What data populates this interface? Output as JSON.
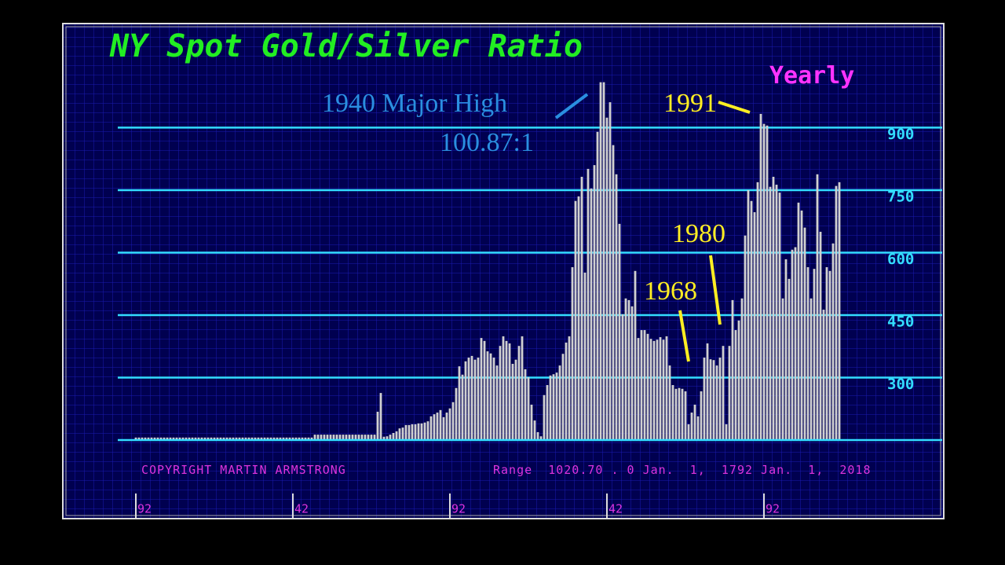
{
  "chart_data": {
    "type": "bar",
    "title": "NY Spot Gold/Silver Ratio",
    "subtitle": "Yearly",
    "annotations": [
      "1940 Major High",
      "100.87:1",
      "1991",
      "1980",
      "1968"
    ],
    "copyright": "COPYRIGHT MARTIN ARMSTRONG",
    "range_text": "Range  1020.70 . 0 Jan.  1,  1792 Jan.  1,  2018",
    "color": "#d0d0d0",
    "xlim": [
      1786.25,
      2048.75
    ],
    "ylim": [
      150,
      1140
    ],
    "yticks": [
      300,
      450,
      600,
      750,
      900
    ],
    "xticks": [
      {
        "value": 1792,
        "label": "92"
      },
      {
        "value": 1842,
        "label": "42"
      },
      {
        "value": 1892,
        "label": "92"
      },
      {
        "value": 1942,
        "label": "42"
      },
      {
        "value": 1992,
        "label": "92"
      }
    ],
    "grid": true,
    "x": [
      1792,
      1793,
      1794,
      1795,
      1796,
      1797,
      1798,
      1799,
      1800,
      1801,
      1802,
      1803,
      1804,
      1805,
      1806,
      1807,
      1808,
      1809,
      1810,
      1811,
      1812,
      1813,
      1814,
      1815,
      1816,
      1817,
      1818,
      1819,
      1820,
      1821,
      1822,
      1823,
      1824,
      1825,
      1826,
      1827,
      1828,
      1829,
      1830,
      1831,
      1832,
      1833,
      1834,
      1835,
      1836,
      1837,
      1838,
      1839,
      1840,
      1841,
      1842,
      1843,
      1844,
      1845,
      1846,
      1847,
      1848,
      1849,
      1850,
      1851,
      1852,
      1853,
      1854,
      1855,
      1856,
      1857,
      1858,
      1859,
      1860,
      1861,
      1862,
      1863,
      1864,
      1865,
      1866,
      1867,
      1868,
      1869,
      1870,
      1871,
      1872,
      1873,
      1874,
      1875,
      1876,
      1877,
      1878,
      1879,
      1880,
      1881,
      1882,
      1883,
      1884,
      1885,
      1886,
      1887,
      1888,
      1889,
      1890,
      1891,
      1892,
      1893,
      1894,
      1895,
      1896,
      1897,
      1898,
      1899,
      1900,
      1901,
      1902,
      1903,
      1904,
      1905,
      1906,
      1907,
      1908,
      1909,
      1910,
      1911,
      1912,
      1913,
      1914,
      1915,
      1916,
      1917,
      1918,
      1919,
      1920,
      1921,
      1922,
      1923,
      1924,
      1925,
      1926,
      1927,
      1928,
      1929,
      1930,
      1931,
      1932,
      1933,
      1934,
      1935,
      1936,
      1937,
      1938,
      1939,
      1940,
      1941,
      1942,
      1943,
      1944,
      1945,
      1946,
      1947,
      1948,
      1949,
      1950,
      1951,
      1952,
      1953,
      1954,
      1955,
      1956,
      1957,
      1958,
      1959,
      1960,
      1961,
      1962,
      1963,
      1964,
      1965,
      1966,
      1967,
      1968,
      1969,
      1970,
      1971,
      1972,
      1973,
      1974,
      1975,
      1976,
      1977,
      1978,
      1979,
      1980,
      1981,
      1982,
      1983,
      1984,
      1985,
      1986,
      1987,
      1988,
      1989,
      1990,
      1991,
      1992,
      1993,
      1994,
      1995,
      1996,
      1997,
      1998,
      1999,
      2000,
      2001,
      2002,
      2003,
      2004,
      2005,
      2006,
      2007,
      2008,
      2009,
      2010,
      2011,
      2012,
      2013,
      2014,
      2015,
      2016
    ],
    "values": [
      156,
      156,
      156,
      156,
      156,
      156,
      156,
      156,
      156,
      156,
      156,
      156,
      156,
      156,
      156,
      156,
      156,
      156,
      156,
      156,
      156,
      156,
      156,
      156,
      156,
      156,
      156,
      156,
      156,
      156,
      156,
      156,
      156,
      156,
      156,
      156,
      156,
      156,
      156,
      156,
      156,
      156,
      156,
      156,
      156,
      156,
      156,
      156,
      156,
      156,
      156,
      156,
      156,
      156,
      156,
      156,
      156,
      163,
      163,
      163,
      163,
      163,
      163,
      163,
      163,
      163,
      163,
      163,
      163,
      163,
      163,
      163,
      163,
      163,
      163,
      163,
      163,
      218,
      263,
      158,
      159,
      163,
      167,
      171,
      178,
      180,
      186,
      186,
      188,
      188,
      190,
      190,
      192,
      195,
      207,
      212,
      216,
      222,
      205,
      216,
      226,
      241,
      275,
      327,
      307,
      339,
      348,
      352,
      343,
      348,
      395,
      388,
      363,
      358,
      348,
      329,
      376,
      399,
      388,
      382,
      333,
      343,
      376,
      399,
      320,
      301,
      235,
      197,
      169,
      159,
      258,
      282,
      305,
      308,
      312,
      329,
      357,
      384,
      399,
      565,
      724,
      735,
      782,
      552,
      801,
      754,
      810,
      890,
      1009,
      1009,
      924,
      961,
      858,
      788,
      669,
      452,
      490,
      486,
      471,
      556,
      395,
      414,
      414,
      405,
      393,
      388,
      391,
      397,
      391,
      399,
      329,
      282,
      273,
      275,
      273,
      267,
      188,
      216,
      235,
      207,
      267,
      348,
      382,
      344,
      342,
      329,
      348,
      376,
      188,
      376,
      486,
      414,
      437,
      490,
      641,
      750,
      724,
      697,
      769,
      933,
      909,
      905,
      758,
      782,
      763,
      744,
      490,
      584,
      537,
      607,
      613,
      720,
      701,
      660,
      565,
      490,
      561,
      788,
      650,
      463,
      565,
      556,
      622,
      760,
      769
    ]
  }
}
